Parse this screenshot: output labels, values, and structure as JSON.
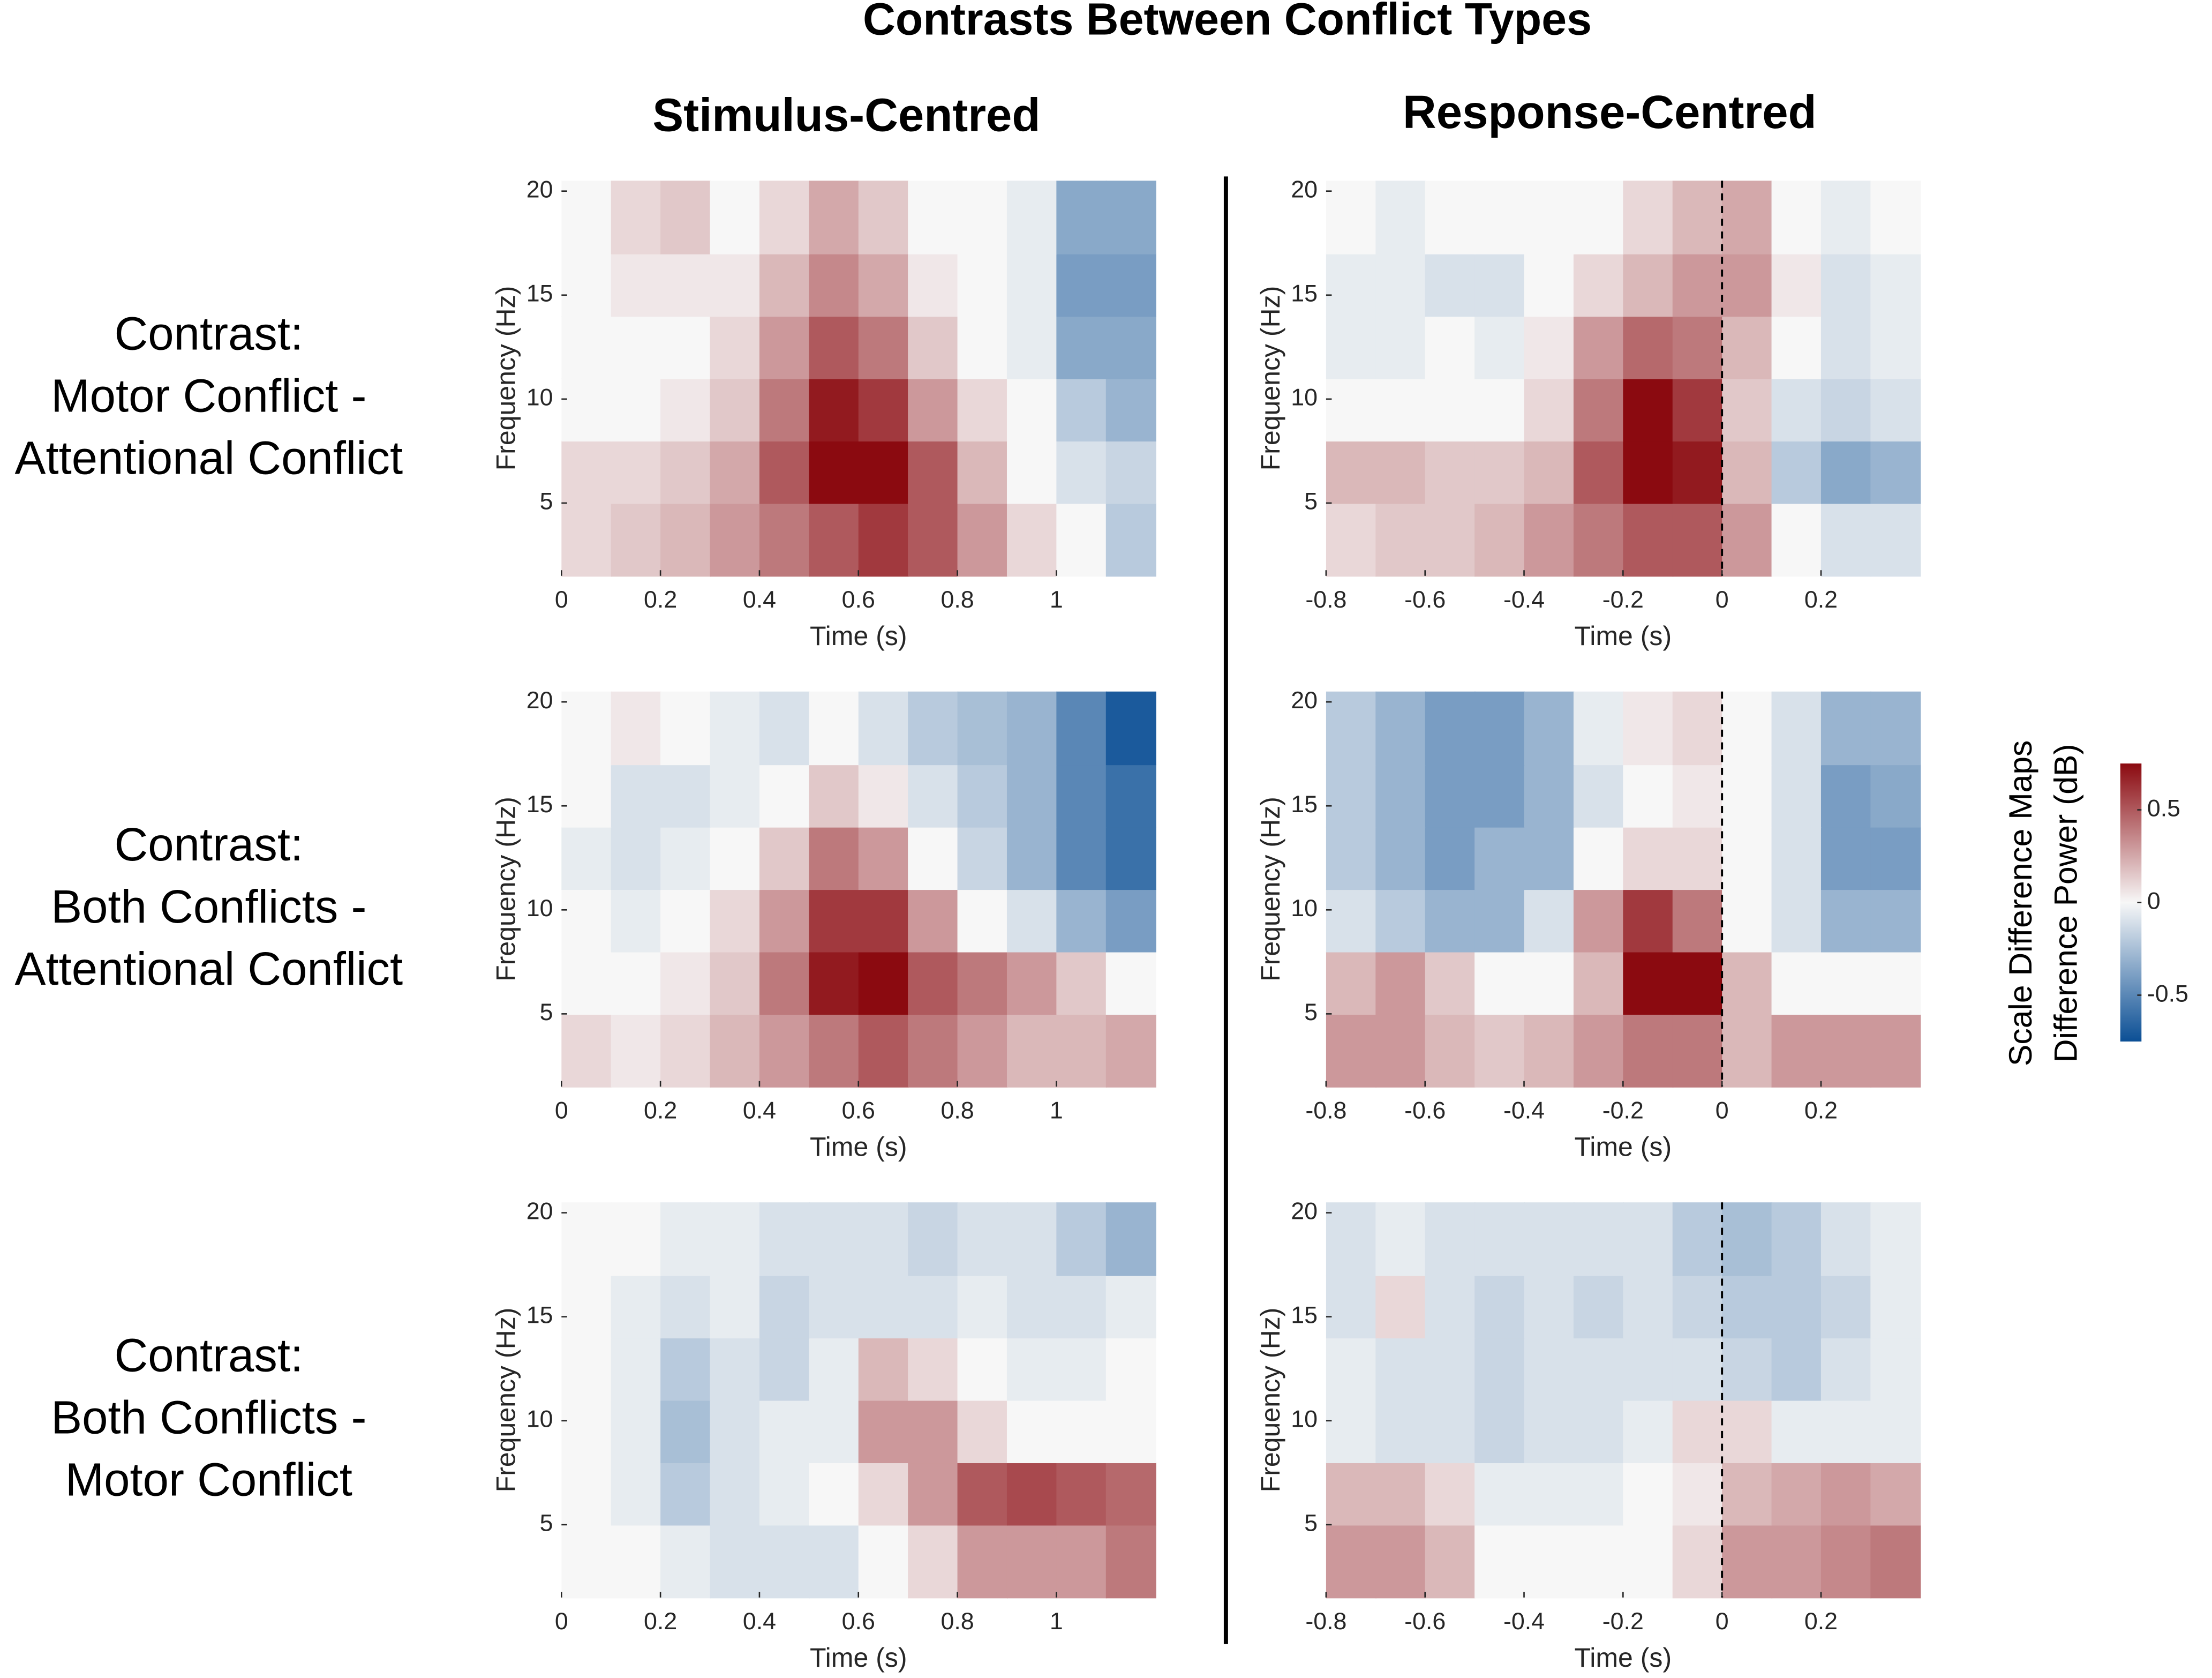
{
  "title": "Contrasts Between Conflict Types",
  "column_titles": [
    "Stimulus-Centred",
    "Response-Centred"
  ],
  "row_titles": [
    [
      "Contrast:",
      "Motor Conflict -",
      "Attentional Conflict"
    ],
    [
      "Contrast:",
      "Both Conflicts -",
      "Attentional Conflict"
    ],
    [
      "Contrast:",
      "Both Conflicts -",
      "Motor Conflict"
    ]
  ],
  "colorbar": {
    "label": [
      "Scale Difference Maps",
      "Difference Power (dB)"
    ],
    "clim": [
      -0.75,
      0.75
    ],
    "ticks": [
      -0.5,
      0,
      0.5
    ],
    "colormap": [
      "#0b4f95",
      "#f7f7f7",
      "#8b0a10"
    ]
  },
  "chart_data": [
    {
      "type": "heatmap",
      "xlabel": "Time (s)",
      "ylabel": "Frequency (Hz)",
      "xlim": [
        0,
        1.2
      ],
      "ylim": [
        1.5,
        20.5
      ],
      "xticks": [
        0,
        0.2,
        0.4,
        0.6,
        0.8,
        1
      ],
      "yticks": [
        5,
        10,
        15,
        20
      ],
      "x": [
        0.05,
        0.15,
        0.25,
        0.35,
        0.45,
        0.55,
        0.65,
        0.75,
        0.85,
        0.95,
        1.05,
        1.15
      ],
      "y": [
        3.5,
        6.5,
        9.5,
        12.5,
        15.5,
        18.5
      ],
      "values": [
        [
          0.1,
          0.15,
          0.2,
          0.3,
          0.4,
          0.5,
          0.6,
          0.5,
          0.3,
          0.1,
          0,
          -0.2
        ],
        [
          0.1,
          0.1,
          0.15,
          0.25,
          0.5,
          0.8,
          0.8,
          0.5,
          0.2,
          0,
          -0.1,
          -0.15
        ],
        [
          0,
          0,
          0.05,
          0.15,
          0.4,
          0.7,
          0.6,
          0.3,
          0.1,
          0,
          -0.2,
          -0.3
        ],
        [
          0,
          0,
          0,
          0.1,
          0.3,
          0.5,
          0.4,
          0.15,
          0,
          -0.05,
          -0.35,
          -0.35
        ],
        [
          0,
          0.05,
          0.05,
          0.05,
          0.2,
          0.35,
          0.25,
          0.05,
          0,
          -0.05,
          -0.4,
          -0.4
        ],
        [
          0,
          0.1,
          0.15,
          0,
          0.1,
          0.25,
          0.15,
          0,
          0,
          -0.05,
          -0.35,
          -0.35
        ]
      ]
    },
    {
      "type": "heatmap",
      "xlabel": "Time (s)",
      "ylabel": "Frequency (Hz)",
      "xlim": [
        -0.8,
        0.4
      ],
      "ylim": [
        1.5,
        20.5
      ],
      "xticks": [
        -0.8,
        -0.6,
        -0.4,
        -0.2,
        0,
        0.2
      ],
      "yticks": [
        5,
        10,
        15,
        20
      ],
      "vline": 0,
      "x": [
        -0.75,
        -0.65,
        -0.55,
        -0.45,
        -0.35,
        -0.25,
        -0.15,
        -0.05,
        0.05,
        0.15,
        0.25,
        0.35
      ],
      "y": [
        3.5,
        6.5,
        9.5,
        12.5,
        15.5,
        18.5
      ],
      "values": [
        [
          0.1,
          0.15,
          0.15,
          0.2,
          0.3,
          0.4,
          0.5,
          0.5,
          0.3,
          0,
          -0.1,
          -0.1
        ],
        [
          0.2,
          0.2,
          0.15,
          0.15,
          0.2,
          0.5,
          0.8,
          0.7,
          0.2,
          -0.2,
          -0.35,
          -0.3
        ],
        [
          0,
          0,
          0,
          0,
          0.1,
          0.4,
          0.8,
          0.6,
          0.15,
          -0.1,
          -0.15,
          -0.1
        ],
        [
          -0.05,
          -0.05,
          0,
          -0.05,
          0.05,
          0.3,
          0.45,
          0.4,
          0.2,
          0,
          -0.1,
          -0.05
        ],
        [
          -0.05,
          -0.05,
          -0.1,
          -0.1,
          0,
          0.1,
          0.2,
          0.3,
          0.3,
          0.05,
          -0.1,
          -0.05
        ],
        [
          0,
          -0.05,
          0,
          0,
          0,
          0,
          0.1,
          0.2,
          0.25,
          0,
          -0.05,
          0
        ]
      ]
    },
    {
      "type": "heatmap",
      "xlabel": "Time (s)",
      "ylabel": "Frequency (Hz)",
      "xlim": [
        0,
        1.2
      ],
      "ylim": [
        1.5,
        20.5
      ],
      "xticks": [
        0,
        0.2,
        0.4,
        0.6,
        0.8,
        1
      ],
      "yticks": [
        5,
        10,
        15,
        20
      ],
      "x": [
        0.05,
        0.15,
        0.25,
        0.35,
        0.45,
        0.55,
        0.65,
        0.75,
        0.85,
        0.95,
        1.05,
        1.15
      ],
      "y": [
        3.5,
        6.5,
        9.5,
        12.5,
        15.5,
        18.5
      ],
      "values": [
        [
          0.1,
          0.05,
          0.1,
          0.2,
          0.3,
          0.4,
          0.5,
          0.4,
          0.3,
          0.2,
          0.2,
          0.25
        ],
        [
          0,
          0,
          0.05,
          0.15,
          0.4,
          0.7,
          0.8,
          0.5,
          0.4,
          0.3,
          0.15,
          0
        ],
        [
          0,
          -0.05,
          0,
          0.1,
          0.3,
          0.6,
          0.6,
          0.3,
          0,
          -0.1,
          -0.3,
          -0.4
        ],
        [
          -0.05,
          -0.1,
          -0.05,
          0,
          0.15,
          0.4,
          0.3,
          0,
          -0.15,
          -0.3,
          -0.5,
          -0.6
        ],
        [
          0,
          -0.1,
          -0.1,
          -0.05,
          0,
          0.15,
          0.05,
          -0.1,
          -0.2,
          -0.3,
          -0.5,
          -0.6
        ],
        [
          0,
          0.05,
          0,
          -0.05,
          -0.1,
          0,
          -0.1,
          -0.2,
          -0.25,
          -0.3,
          -0.5,
          -0.7
        ]
      ]
    },
    {
      "type": "heatmap",
      "xlabel": "Time (s)",
      "ylabel": "Frequency (Hz)",
      "xlim": [
        -0.8,
        0.4
      ],
      "ylim": [
        1.5,
        20.5
      ],
      "xticks": [
        -0.8,
        -0.6,
        -0.4,
        -0.2,
        0,
        0.2
      ],
      "yticks": [
        5,
        10,
        15,
        20
      ],
      "vline": 0,
      "x": [
        -0.75,
        -0.65,
        -0.55,
        -0.45,
        -0.35,
        -0.25,
        -0.15,
        -0.05,
        0.05,
        0.15,
        0.25,
        0.35
      ],
      "y": [
        3.5,
        6.5,
        9.5,
        12.5,
        15.5,
        18.5
      ],
      "values": [
        [
          0.3,
          0.3,
          0.2,
          0.15,
          0.2,
          0.3,
          0.4,
          0.4,
          0.2,
          0.3,
          0.3,
          0.3
        ],
        [
          0.2,
          0.3,
          0.15,
          0,
          0,
          0.2,
          0.8,
          0.8,
          0.2,
          0,
          0,
          0
        ],
        [
          -0.1,
          -0.2,
          -0.3,
          -0.3,
          -0.1,
          0.3,
          0.6,
          0.4,
          0,
          -0.1,
          -0.3,
          -0.3
        ],
        [
          -0.2,
          -0.3,
          -0.4,
          -0.3,
          -0.3,
          0,
          0.1,
          0.1,
          0,
          -0.1,
          -0.4,
          -0.4
        ],
        [
          -0.2,
          -0.3,
          -0.4,
          -0.4,
          -0.3,
          -0.1,
          0,
          0.05,
          0,
          -0.1,
          -0.4,
          -0.35
        ],
        [
          -0.2,
          -0.3,
          -0.4,
          -0.4,
          -0.3,
          -0.05,
          0.05,
          0.1,
          0,
          -0.1,
          -0.3,
          -0.3
        ]
      ]
    },
    {
      "type": "heatmap",
      "xlabel": "Time (s)",
      "ylabel": "Frequency (Hz)",
      "xlim": [
        0,
        1.2
      ],
      "ylim": [
        1.5,
        20.5
      ],
      "xticks": [
        0,
        0.2,
        0.4,
        0.6,
        0.8,
        1
      ],
      "yticks": [
        5,
        10,
        15,
        20
      ],
      "x": [
        0.05,
        0.15,
        0.25,
        0.35,
        0.45,
        0.55,
        0.65,
        0.75,
        0.85,
        0.95,
        1.05,
        1.15
      ],
      "y": [
        3.5,
        6.5,
        9.5,
        12.5,
        15.5,
        18.5
      ],
      "values": [
        [
          0,
          0,
          -0.05,
          -0.1,
          -0.1,
          -0.1,
          0,
          0.1,
          0.3,
          0.3,
          0.3,
          0.4
        ],
        [
          0,
          -0.05,
          -0.2,
          -0.1,
          -0.05,
          0,
          0.1,
          0.3,
          0.5,
          0.55,
          0.5,
          0.45
        ],
        [
          0,
          -0.05,
          -0.25,
          -0.1,
          -0.05,
          -0.05,
          0.3,
          0.3,
          0.1,
          0,
          0,
          0
        ],
        [
          0,
          -0.05,
          -0.2,
          -0.1,
          -0.15,
          -0.05,
          0.2,
          0.1,
          0,
          -0.05,
          -0.05,
          0
        ],
        [
          0,
          -0.05,
          -0.1,
          -0.05,
          -0.15,
          -0.1,
          -0.1,
          -0.1,
          -0.05,
          -0.1,
          -0.1,
          -0.05
        ],
        [
          0,
          0,
          -0.05,
          -0.05,
          -0.1,
          -0.1,
          -0.1,
          -0.15,
          -0.1,
          -0.1,
          -0.2,
          -0.3
        ]
      ]
    },
    {
      "type": "heatmap",
      "xlabel": "Time (s)",
      "ylabel": "Frequency (Hz)",
      "xlim": [
        -0.8,
        0.4
      ],
      "ylim": [
        1.5,
        20.5
      ],
      "xticks": [
        -0.8,
        -0.6,
        -0.4,
        -0.2,
        0,
        0.2
      ],
      "yticks": [
        5,
        10,
        15,
        20
      ],
      "vline": 0,
      "x": [
        -0.75,
        -0.65,
        -0.55,
        -0.45,
        -0.35,
        -0.25,
        -0.15,
        -0.05,
        0.05,
        0.15,
        0.25,
        0.35
      ],
      "y": [
        3.5,
        6.5,
        9.5,
        12.5,
        15.5,
        18.5
      ],
      "values": [
        [
          0.3,
          0.3,
          0.2,
          0,
          0,
          0,
          0,
          0.1,
          0.3,
          0.3,
          0.35,
          0.4
        ],
        [
          0.2,
          0.2,
          0.1,
          -0.05,
          -0.05,
          -0.05,
          0,
          0.05,
          0.2,
          0.25,
          0.3,
          0.25
        ],
        [
          -0.05,
          -0.1,
          -0.1,
          -0.15,
          -0.1,
          -0.1,
          -0.05,
          0.1,
          0.1,
          -0.05,
          -0.05,
          -0.05
        ],
        [
          -0.05,
          -0.1,
          -0.1,
          -0.15,
          -0.1,
          -0.1,
          -0.1,
          -0.1,
          -0.15,
          -0.2,
          -0.1,
          -0.05
        ],
        [
          -0.1,
          0.1,
          -0.1,
          -0.15,
          -0.1,
          -0.15,
          -0.1,
          -0.15,
          -0.2,
          -0.2,
          -0.15,
          -0.05
        ],
        [
          -0.1,
          -0.05,
          -0.1,
          -0.1,
          -0.1,
          -0.1,
          -0.1,
          -0.2,
          -0.25,
          -0.2,
          -0.1,
          -0.05
        ]
      ]
    }
  ]
}
